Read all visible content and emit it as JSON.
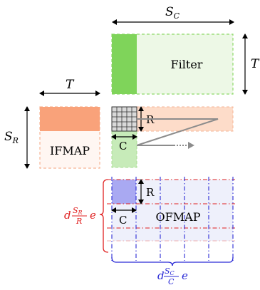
{
  "labels": {
    "sc": {
      "main": "S",
      "sub": "C"
    },
    "t_top": "T",
    "t_right": "T",
    "t_left": "T",
    "sr": {
      "main": "S",
      "sub": "R"
    },
    "filter": "Filter",
    "ifmap": "IFMAP",
    "r_window": "R",
    "c_window": "C",
    "r_ofmap": "R",
    "c_ofmap": "C",
    "ofmap": "OFMAP",
    "rows_expr": {
      "d": "d",
      "num_main": "S",
      "num_sub": "R",
      "den": "R",
      "e": "e"
    },
    "cols_expr": {
      "d": "d",
      "num_main": "S",
      "num_sub": "C",
      "den": "C",
      "e": "e"
    }
  },
  "colors": {
    "filter_fill": "#edf8e6",
    "filter_dark": "#7fd45a",
    "filter_border": "#8fd96a",
    "ifmap_top": "#f9a27a",
    "ifmap_bottom": "#fff6f2",
    "ifmap_border": "#f6b595",
    "row_strip": "#fddcc9",
    "c_strip": "#c7ebb9",
    "ofmap_fill": "#eef0fb",
    "ofmap_tile": "#a9a9f2",
    "red_dash": "#e02020",
    "blue_dash": "#2a2ad6",
    "arrow_gray": "#8c8c8c"
  }
}
